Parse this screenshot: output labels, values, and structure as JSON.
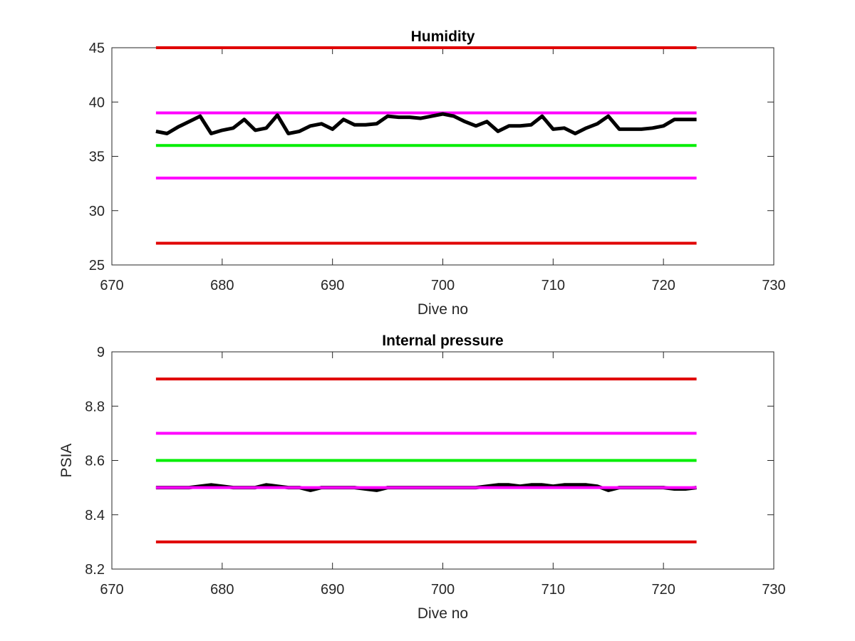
{
  "chart_data": [
    {
      "type": "line",
      "title": "Humidity",
      "xlabel": "Dive no",
      "ylabel": "",
      "xlim": [
        670,
        730
      ],
      "ylim": [
        25,
        45
      ],
      "xticks": [
        670,
        680,
        690,
        700,
        710,
        720,
        730
      ],
      "yticks": [
        25,
        30,
        35,
        40,
        45
      ],
      "grid": false,
      "series": [
        {
          "color": "#e00000",
          "width": 4,
          "x": [
            674,
            723
          ],
          "y": [
            45,
            45
          ]
        },
        {
          "color": "#ff00ff",
          "width": 4,
          "x": [
            674,
            723
          ],
          "y": [
            39,
            39
          ]
        },
        {
          "color": "#00ee00",
          "width": 4,
          "x": [
            674,
            723
          ],
          "y": [
            36,
            36
          ]
        },
        {
          "color": "#ff00ff",
          "width": 4,
          "x": [
            674,
            723
          ],
          "y": [
            33,
            33
          ]
        },
        {
          "color": "#e00000",
          "width": 4,
          "x": [
            674,
            723
          ],
          "y": [
            27,
            27
          ]
        },
        {
          "color": "#000000",
          "width": 5,
          "x": [
            674,
            675,
            676,
            677,
            678,
            679,
            680,
            681,
            682,
            683,
            684,
            685,
            686,
            687,
            688,
            689,
            690,
            691,
            692,
            693,
            694,
            695,
            696,
            697,
            698,
            699,
            700,
            701,
            702,
            703,
            704,
            705,
            706,
            707,
            708,
            709,
            710,
            711,
            712,
            713,
            714,
            715,
            716,
            717,
            718,
            719,
            720,
            721,
            722,
            723
          ],
          "y": [
            37.3,
            37.1,
            37.7,
            38.2,
            38.7,
            37.1,
            37.4,
            37.6,
            38.4,
            37.4,
            37.6,
            38.8,
            37.1,
            37.3,
            37.8,
            38.0,
            37.5,
            38.4,
            37.9,
            37.9,
            38.0,
            38.7,
            38.6,
            38.6,
            38.5,
            38.7,
            38.9,
            38.7,
            38.2,
            37.8,
            38.2,
            37.3,
            37.8,
            37.8,
            37.9,
            38.7,
            37.5,
            37.6,
            37.1,
            37.6,
            38.0,
            38.7,
            37.5,
            37.5,
            37.5,
            37.6,
            37.8,
            38.4,
            38.4,
            38.4
          ]
        }
      ]
    },
    {
      "type": "line",
      "title": "Internal pressure",
      "xlabel": "Dive no",
      "ylabel": "PSIA",
      "xlim": [
        670,
        730
      ],
      "ylim": [
        8.2,
        9
      ],
      "xticks": [
        670,
        680,
        690,
        700,
        710,
        720,
        730
      ],
      "yticks": [
        8.2,
        8.4,
        8.6,
        8.8,
        9
      ],
      "ytick_labels": [
        "8.2",
        "8.4",
        "8.6",
        "8.8",
        "9"
      ],
      "grid": false,
      "series": [
        {
          "color": "#e00000",
          "width": 4,
          "x": [
            674,
            723
          ],
          "y": [
            8.9,
            8.9
          ]
        },
        {
          "color": "#ff00ff",
          "width": 4,
          "x": [
            674,
            723
          ],
          "y": [
            8.7,
            8.7
          ]
        },
        {
          "color": "#00ee00",
          "width": 4,
          "x": [
            674,
            723
          ],
          "y": [
            8.6,
            8.6
          ]
        },
        {
          "color": "#e00000",
          "width": 4,
          "x": [
            674,
            723
          ],
          "y": [
            8.3,
            8.3
          ]
        },
        {
          "color": "#000000",
          "width": 5,
          "x": [
            674,
            675,
            676,
            677,
            678,
            679,
            680,
            681,
            682,
            683,
            684,
            685,
            686,
            687,
            688,
            689,
            690,
            691,
            692,
            693,
            694,
            695,
            696,
            697,
            698,
            699,
            700,
            701,
            702,
            703,
            704,
            705,
            706,
            707,
            708,
            709,
            710,
            711,
            712,
            713,
            714,
            715,
            716,
            717,
            718,
            719,
            720,
            721,
            722,
            723
          ],
          "y": [
            8.5,
            8.5,
            8.5,
            8.5,
            8.505,
            8.51,
            8.505,
            8.5,
            8.5,
            8.5,
            8.51,
            8.505,
            8.5,
            8.5,
            8.49,
            8.5,
            8.5,
            8.5,
            8.5,
            8.495,
            8.49,
            8.5,
            8.5,
            8.5,
            8.5,
            8.5,
            8.5,
            8.5,
            8.5,
            8.5,
            8.505,
            8.51,
            8.51,
            8.505,
            8.51,
            8.51,
            8.505,
            8.51,
            8.51,
            8.51,
            8.505,
            8.49,
            8.5,
            8.5,
            8.5,
            8.5,
            8.5,
            8.495,
            8.495,
            8.5
          ]
        },
        {
          "color": "#ff00ff",
          "width": 4,
          "x": [
            674,
            723
          ],
          "y": [
            8.5,
            8.5
          ]
        }
      ]
    }
  ]
}
